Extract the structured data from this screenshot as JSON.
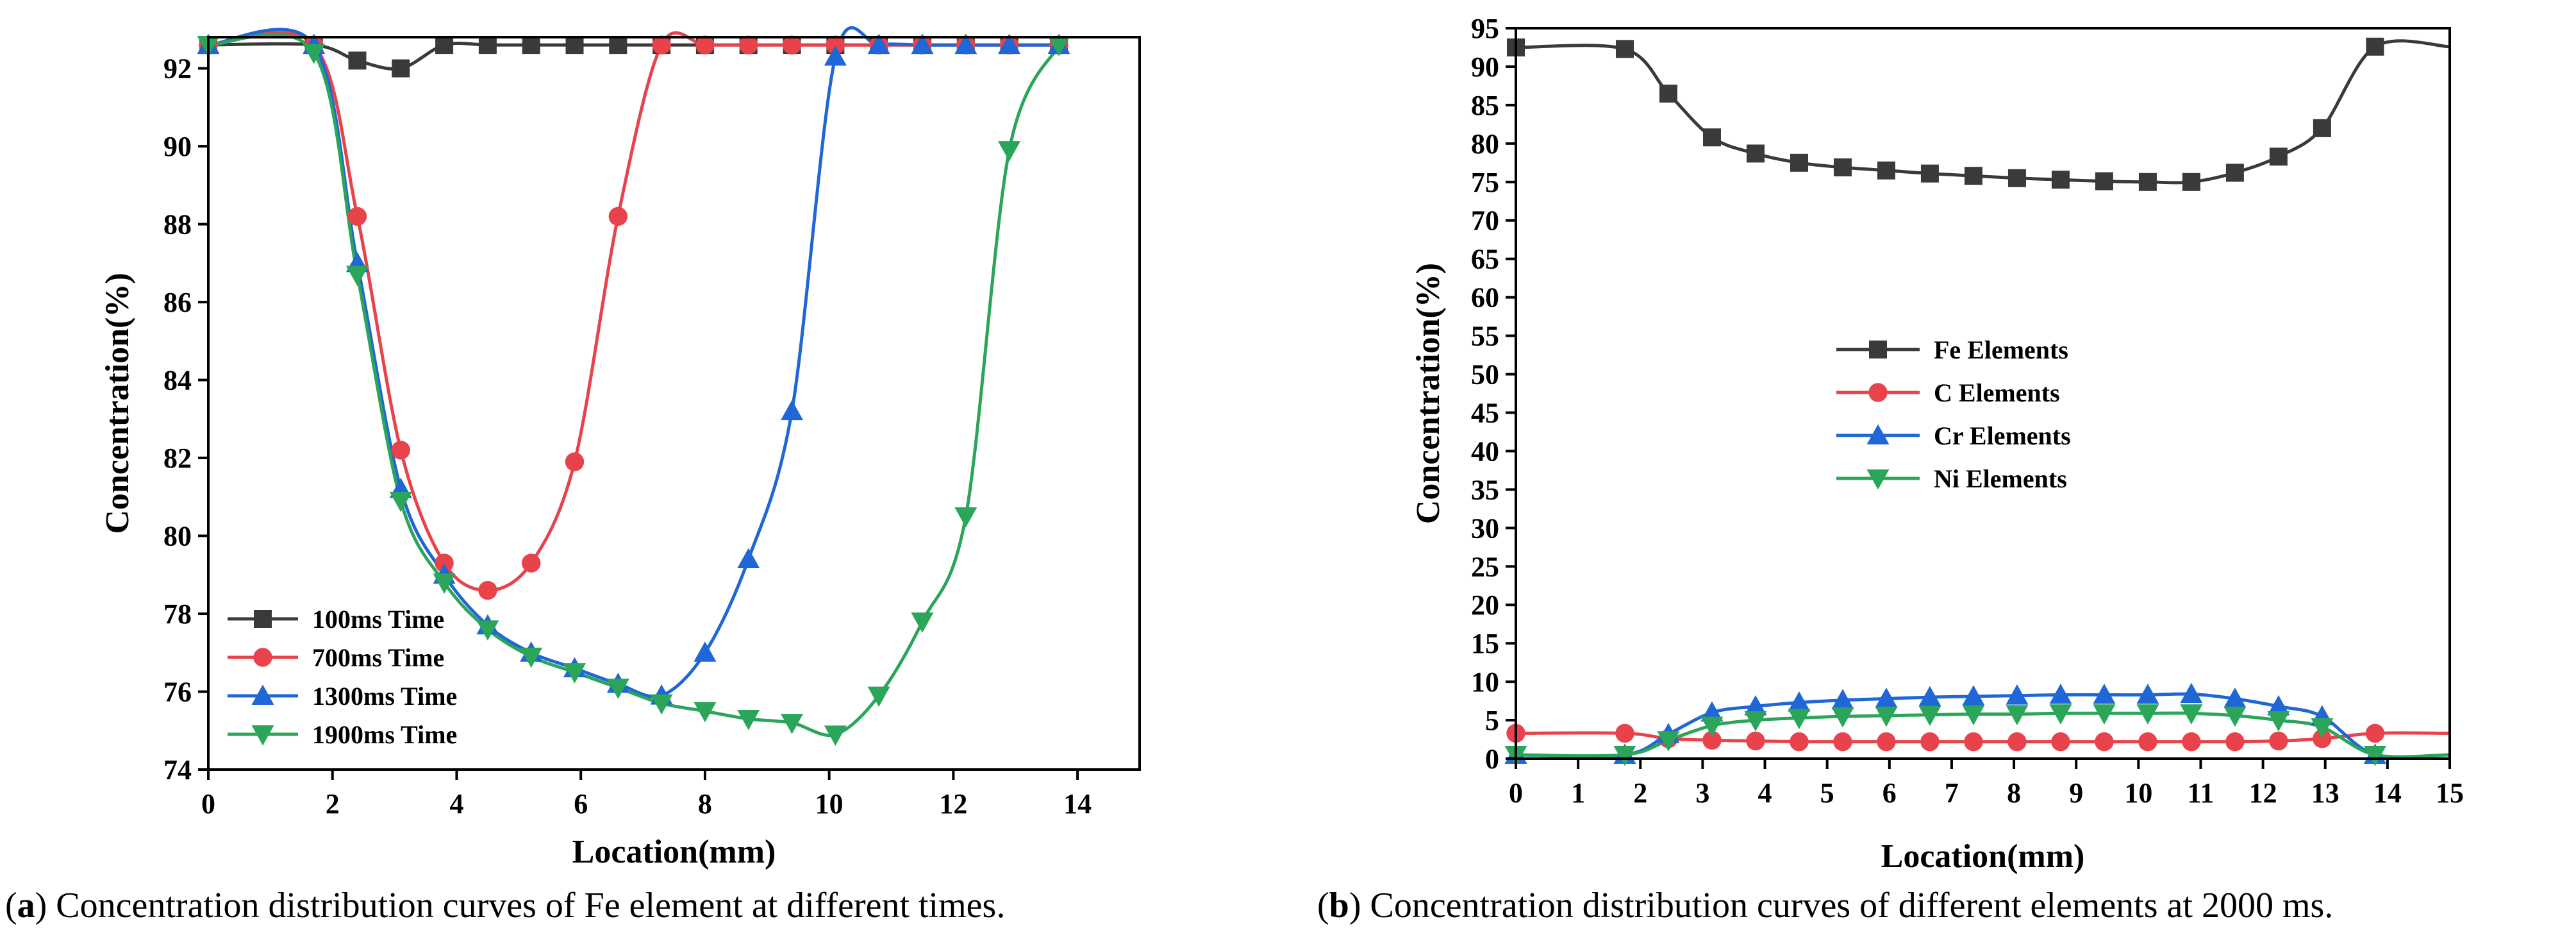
{
  "colors": {
    "fe": "#3a3a3a",
    "c": "#e8424a",
    "cr": "#1f66d6",
    "ni": "#2aa55a"
  },
  "captions": {
    "a": {
      "letter": "a",
      "text": ") Concentration distribution curves of Fe element at different times."
    },
    "b": {
      "letter": "b",
      "text": ") Concentration distribution curves of different elements at 2000 ms."
    }
  },
  "chart_data": [
    {
      "id": "a",
      "type": "line",
      "xlabel": "Location(mm)",
      "ylabel": "Concentration(%)",
      "xlim": [
        0,
        15
      ],
      "ylim": [
        74,
        92.8
      ],
      "xticks": [
        0,
        2,
        4,
        6,
        8,
        10,
        12,
        14
      ],
      "yticks": [
        74,
        76,
        78,
        80,
        82,
        84,
        86,
        88,
        90,
        92
      ],
      "legend_position": "bottom-left",
      "series": [
        {
          "name": "100ms Time",
          "marker": "square",
          "color_key": "fe",
          "x": [
            0,
            1.7,
            2.4,
            3.1,
            3.8,
            4.5,
            5.2,
            5.9,
            6.6,
            7.3,
            8.0,
            8.7,
            9.4,
            10.1,
            10.8,
            11.5,
            12.2,
            12.9,
            13.7
          ],
          "y": [
            92.6,
            92.6,
            92.2,
            92.0,
            92.6,
            92.6,
            92.6,
            92.6,
            92.6,
            92.6,
            92.6,
            92.6,
            92.6,
            92.6,
            92.6,
            92.6,
            92.6,
            92.6,
            92.6
          ]
        },
        {
          "name": "700ms Time",
          "marker": "circle",
          "color_key": "c",
          "x": [
            0,
            1.7,
            2.4,
            3.1,
            3.8,
            4.5,
            5.2,
            5.9,
            6.6,
            7.3,
            8.0,
            8.7,
            9.4,
            10.1,
            10.8,
            11.5,
            12.2,
            12.9,
            13.7
          ],
          "y": [
            92.6,
            92.6,
            88.2,
            82.2,
            79.3,
            78.6,
            79.3,
            81.9,
            88.2,
            92.6,
            92.6,
            92.6,
            92.6,
            92.6,
            92.6,
            92.6,
            92.6,
            92.6,
            92.6
          ]
        },
        {
          "name": "1300ms Time",
          "marker": "triangle-up",
          "color_key": "cr",
          "x": [
            0,
            1.7,
            2.4,
            3.1,
            3.8,
            4.5,
            5.2,
            5.9,
            6.6,
            7.3,
            8.0,
            8.7,
            9.4,
            10.1,
            10.8,
            11.5,
            12.2,
            12.9,
            13.7
          ],
          "y": [
            92.6,
            92.6,
            87.0,
            81.2,
            79.0,
            77.7,
            77.0,
            76.6,
            76.2,
            75.9,
            77.0,
            79.4,
            83.2,
            92.3,
            92.6,
            92.6,
            92.6,
            92.6,
            92.6
          ]
        },
        {
          "name": "1900ms Time",
          "marker": "triangle-down",
          "color_key": "ni",
          "x": [
            0,
            1.7,
            2.4,
            3.1,
            3.8,
            4.5,
            5.2,
            5.9,
            6.6,
            7.3,
            8.0,
            8.7,
            9.4,
            10.1,
            10.8,
            11.5,
            12.2,
            12.9,
            13.7
          ],
          "y": [
            92.6,
            92.4,
            86.7,
            80.9,
            78.8,
            77.6,
            76.9,
            76.5,
            76.1,
            75.7,
            75.5,
            75.3,
            75.2,
            74.9,
            75.9,
            77.8,
            80.5,
            89.9,
            92.6
          ]
        }
      ]
    },
    {
      "id": "b",
      "type": "line",
      "xlabel": "Location(mm)",
      "ylabel": "Concentration(%)",
      "xlim": [
        0,
        15
      ],
      "ylim": [
        0,
        95
      ],
      "xticks": [
        0,
        1,
        2,
        3,
        4,
        5,
        6,
        7,
        8,
        9,
        10,
        11,
        12,
        13,
        14,
        15
      ],
      "yticks": [
        0,
        5,
        10,
        15,
        20,
        25,
        30,
        35,
        40,
        45,
        50,
        55,
        60,
        65,
        70,
        75,
        80,
        85,
        90,
        95
      ],
      "legend_position": "center-left",
      "series": [
        {
          "name": "Fe Elements",
          "marker": "square",
          "color_key": "fe",
          "x": [
            0,
            1.75,
            2.45,
            3.15,
            3.85,
            4.55,
            5.25,
            5.95,
            6.65,
            7.35,
            8.05,
            8.75,
            9.45,
            10.15,
            10.85,
            11.55,
            12.25,
            12.95,
            13.8,
            15
          ],
          "y": [
            92.5,
            92.3,
            86.5,
            80.8,
            78.7,
            77.5,
            76.9,
            76.5,
            76.1,
            75.8,
            75.5,
            75.3,
            75.1,
            75.0,
            75.0,
            76.2,
            78.3,
            82.0,
            92.6,
            92.6
          ]
        },
        {
          "name": "C Elements",
          "marker": "circle",
          "color_key": "c",
          "x": [
            0,
            1.75,
            2.45,
            3.15,
            3.85,
            4.55,
            5.25,
            5.95,
            6.65,
            7.35,
            8.05,
            8.75,
            9.45,
            10.15,
            10.85,
            11.55,
            12.25,
            12.95,
            13.8,
            15
          ],
          "y": [
            3.3,
            3.3,
            2.6,
            2.4,
            2.3,
            2.2,
            2.2,
            2.2,
            2.2,
            2.2,
            2.2,
            2.2,
            2.2,
            2.2,
            2.2,
            2.2,
            2.3,
            2.6,
            3.3,
            3.3
          ]
        },
        {
          "name": "Cr Elements",
          "marker": "triangle-up",
          "color_key": "cr",
          "x": [
            0,
            1.75,
            2.45,
            3.15,
            3.85,
            4.55,
            5.25,
            5.95,
            6.65,
            7.35,
            8.05,
            8.75,
            9.45,
            10.15,
            10.85,
            11.55,
            12.25,
            12.95,
            13.8,
            15
          ],
          "y": [
            0.5,
            0.5,
            3.2,
            6.0,
            6.8,
            7.3,
            7.6,
            7.8,
            8.0,
            8.1,
            8.2,
            8.3,
            8.3,
            8.3,
            8.4,
            7.8,
            6.8,
            5.5,
            0.5,
            0.5
          ]
        },
        {
          "name": "Ni Elements",
          "marker": "triangle-down",
          "color_key": "ni",
          "x": [
            0,
            1.75,
            2.45,
            3.15,
            3.85,
            4.55,
            5.25,
            5.95,
            6.65,
            7.35,
            8.05,
            8.75,
            9.45,
            10.15,
            10.85,
            11.55,
            12.25,
            12.95,
            13.8,
            15
          ],
          "y": [
            0.5,
            0.5,
            2.4,
            4.3,
            5.0,
            5.3,
            5.5,
            5.6,
            5.7,
            5.8,
            5.8,
            5.9,
            5.9,
            5.9,
            5.9,
            5.6,
            5.0,
            4.1,
            0.5,
            0.5
          ]
        }
      ]
    }
  ]
}
